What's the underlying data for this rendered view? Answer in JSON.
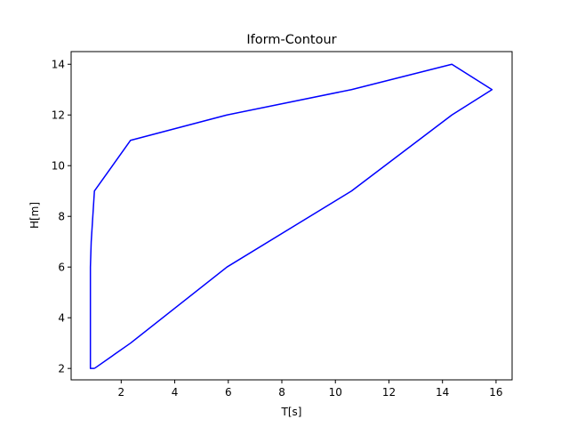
{
  "chart_data": {
    "type": "line",
    "title": "Iform-Contour",
    "xlabel": "T[s]",
    "ylabel": "H[m]",
    "xlim": [
      0.13,
      16.6
    ],
    "ylim": [
      1.55,
      14.5
    ],
    "xticks": [
      2,
      4,
      6,
      8,
      10,
      12,
      14,
      16
    ],
    "yticks": [
      2,
      4,
      6,
      8,
      10,
      12,
      14
    ],
    "grid": false,
    "series": [
      {
        "color": "#0000ff",
        "x": [
          1.0,
          0.85,
          0.85,
          0.85,
          0.85,
          0.85,
          0.88,
          1.0,
          2.35,
          5.95,
          10.6,
          14.35,
          15.85,
          14.35,
          10.6,
          5.95,
          2.35,
          1.0
        ],
        "y": [
          2,
          2,
          3,
          4,
          5,
          6,
          7,
          9,
          11,
          12,
          13,
          14,
          13,
          12,
          9,
          6,
          3,
          2
        ]
      }
    ]
  }
}
